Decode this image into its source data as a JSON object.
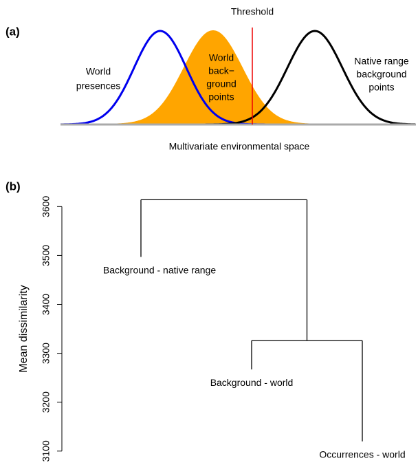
{
  "diagram": {
    "panel_label": "(a)",
    "threshold_label": "Threshold",
    "world_presences": [
      "World",
      "presences"
    ],
    "world_background": [
      "World",
      "back−",
      "ground",
      "points"
    ],
    "native_background": [
      "Native range",
      "background",
      "points"
    ],
    "x_label": "Multivariate environmental space"
  },
  "chart_data": {
    "type": "dendrogram",
    "panel_label": "(b)",
    "y_label": "Mean dissimilarity",
    "ylim": [
      3080,
      3630
    ],
    "yticks": [
      3100,
      3200,
      3300,
      3400,
      3500,
      3600
    ],
    "color": "#000000",
    "tree": {
      "height": 3614,
      "children": [
        {
          "label": "Background - native range",
          "height": 3497
        },
        {
          "height": 3326,
          "children": [
            {
              "label": "Background - world",
              "height": 3267
            },
            {
              "label": "Occurrences - world",
              "height": 3120
            }
          ]
        }
      ]
    }
  }
}
